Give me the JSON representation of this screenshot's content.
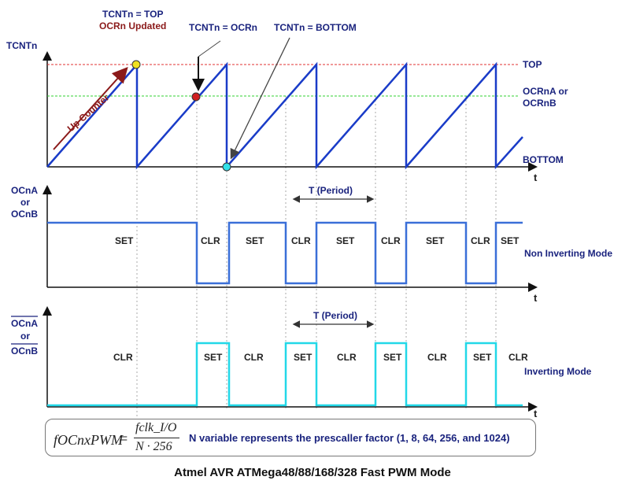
{
  "top_annotations": {
    "tcnt_top": "TCNTn = TOP",
    "ocr_updated": "OCRn Updated",
    "tcnt_ocr": "TCNTn = OCRn",
    "tcnt_bottom": "TCNTn = BOTTOM"
  },
  "counter_plot": {
    "ylabel": "TCNTn",
    "top_label": "TOP",
    "ocr_label_1": "OCRnA or",
    "ocr_label_2": "OCRnB",
    "bottom_label": "BOTTOM",
    "up_counter": "Up Counter",
    "t_label": "t"
  },
  "noninv_plot": {
    "ylabel_1": "OCnA",
    "ylabel_2": "or",
    "ylabel_3": "OCnB",
    "period": "T (Period)",
    "mode": "Non Inverting Mode",
    "t_label": "t",
    "states": [
      "SET",
      "CLR",
      "SET",
      "CLR",
      "SET",
      "CLR",
      "SET",
      "CLR",
      "SET"
    ]
  },
  "inv_plot": {
    "ylabel_1": "OCnA",
    "ylabel_2": "or",
    "ylabel_3": "OCnB",
    "period": "T (Period)",
    "mode": "Inverting Mode",
    "t_label": "t",
    "states": [
      "CLR",
      "SET",
      "CLR",
      "SET",
      "CLR",
      "SET",
      "CLR",
      "SET",
      "CLR"
    ]
  },
  "formula": {
    "lhs": "fOCnxPWM",
    "eq": "=",
    "numerator": "fclk_I/O",
    "denominator": "N · 256",
    "note": "N variable represents the prescaller factor (1, 8, 64, 256, and 1024)"
  },
  "caption": "Atmel AVR ATMega48/88/168/328 Fast PWM Mode",
  "colors": {
    "sawtooth": "#1a3cc8",
    "noninv_wave": "#3a6fd8",
    "inv_wave": "#22d8e8",
    "top_line": "#e03030",
    "ocr_line": "#30d030",
    "label_navy": "#1a237e"
  }
}
